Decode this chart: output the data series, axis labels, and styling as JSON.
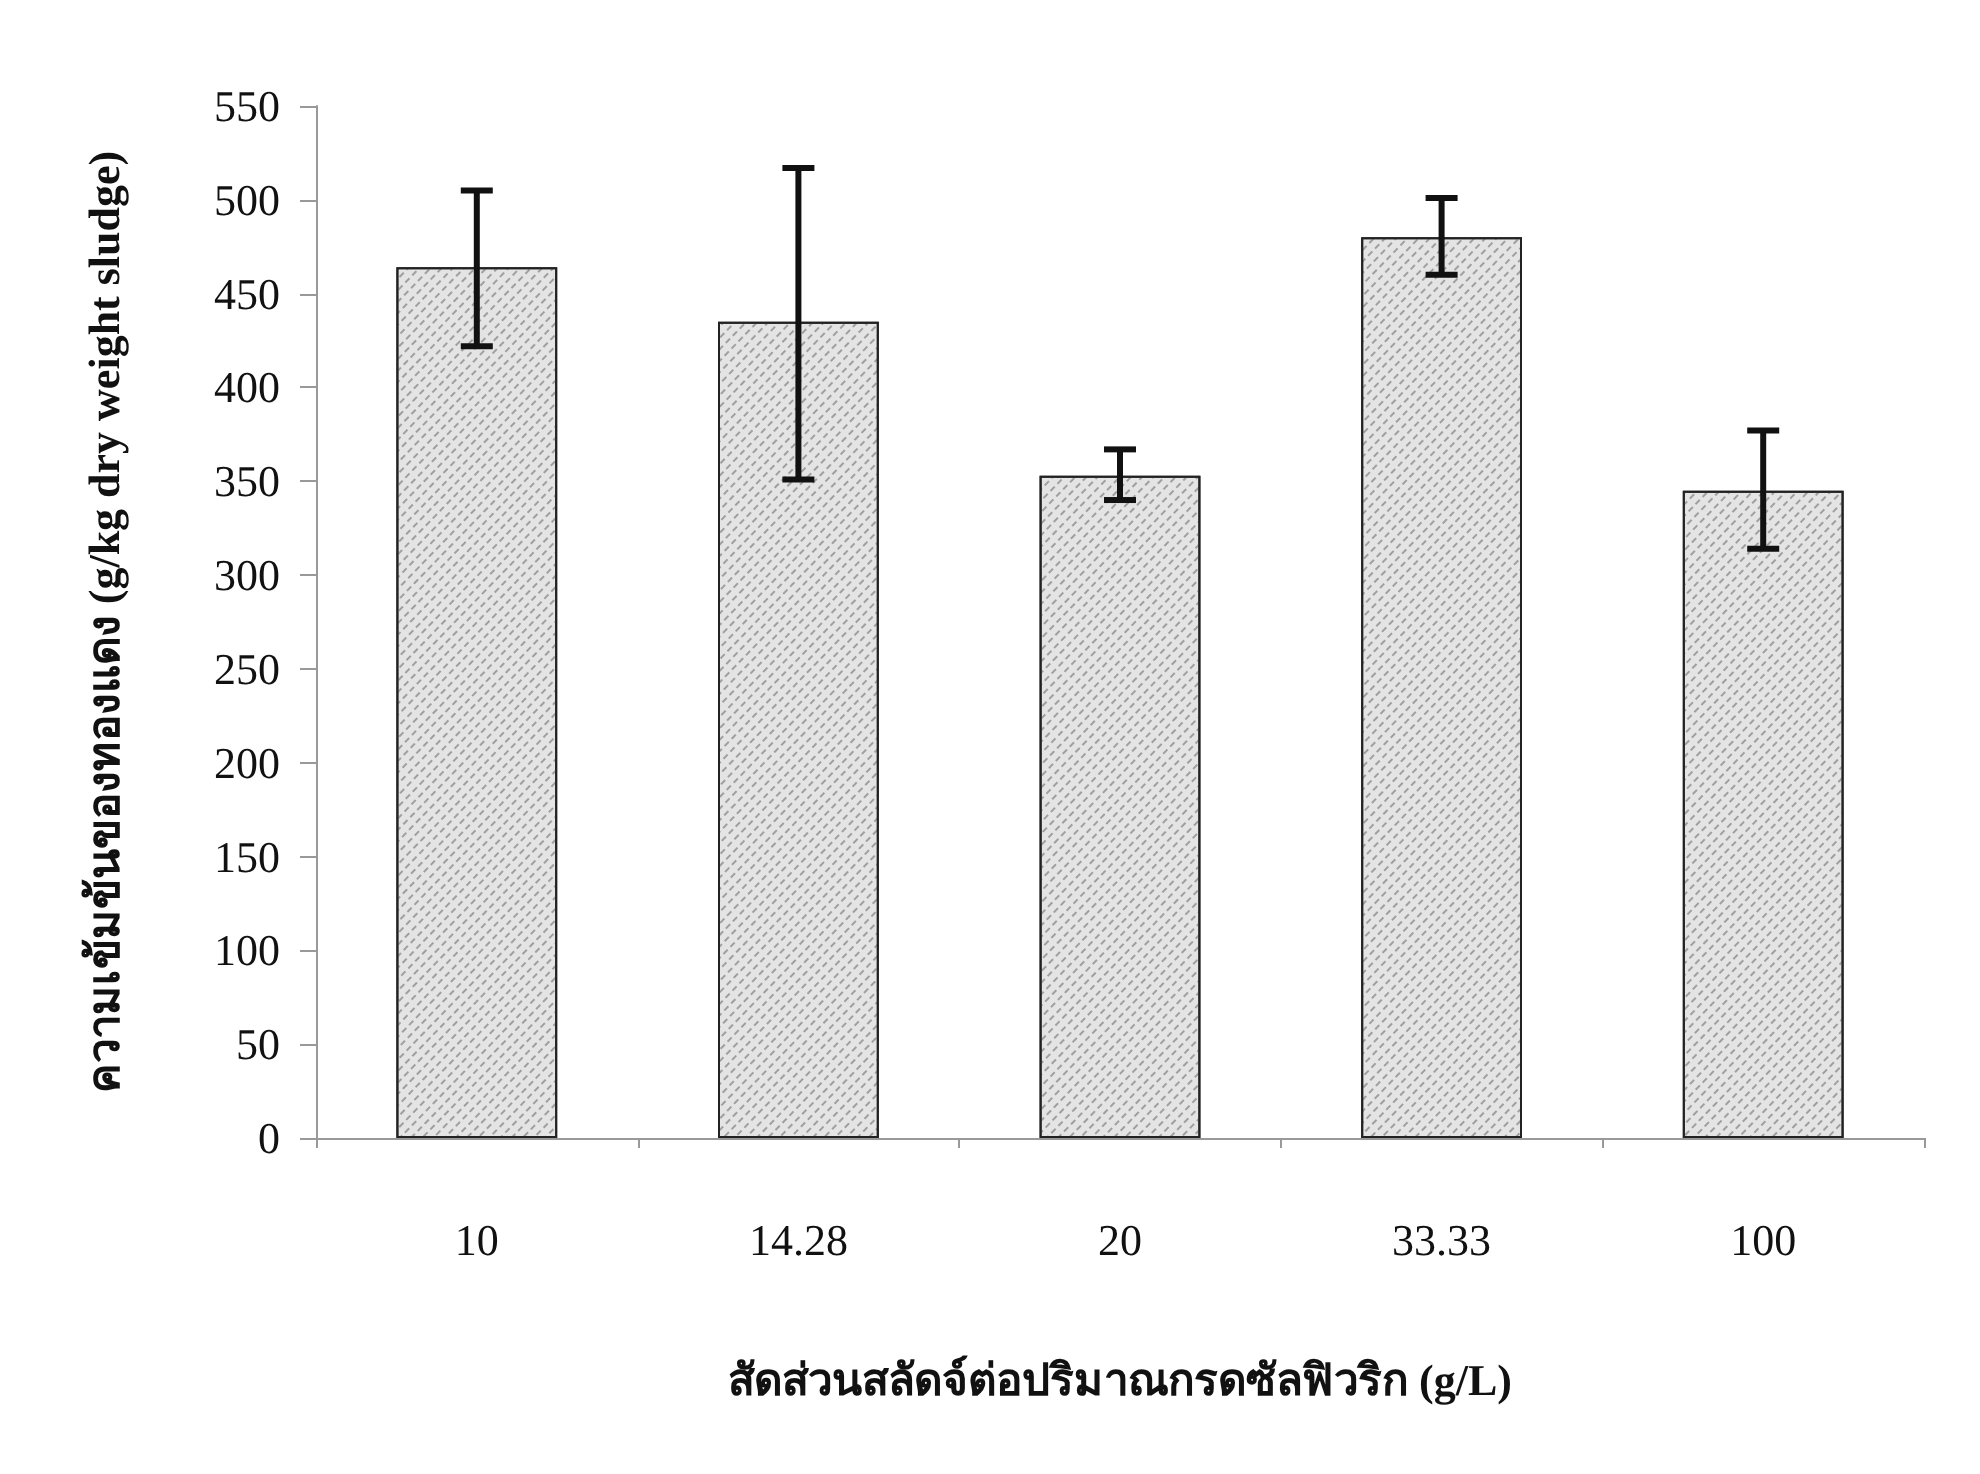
{
  "chart_data": {
    "type": "bar",
    "xlabel": "สัดส่วนสลัดจ์ต่อปริมาณกรดซัลฟิวริก (g/L)",
    "ylabel": "ความเข้มข้นของทองแดง (g/kg dry weight sludge)",
    "categories": [
      "10",
      "14.28",
      "20",
      "33.33",
      "100"
    ],
    "values": [
      464,
      435,
      353,
      480,
      345
    ],
    "errors": [
      [
        422,
        505
      ],
      [
        351,
        517
      ],
      [
        340,
        367
      ],
      [
        460,
        501
      ],
      [
        314,
        377
      ]
    ],
    "color": "#e4e4e4",
    "ylim": [
      0,
      550
    ],
    "yticks": [
      0,
      50,
      100,
      150,
      200,
      250,
      300,
      350,
      400,
      450,
      500,
      550
    ],
    "grid": false
  }
}
